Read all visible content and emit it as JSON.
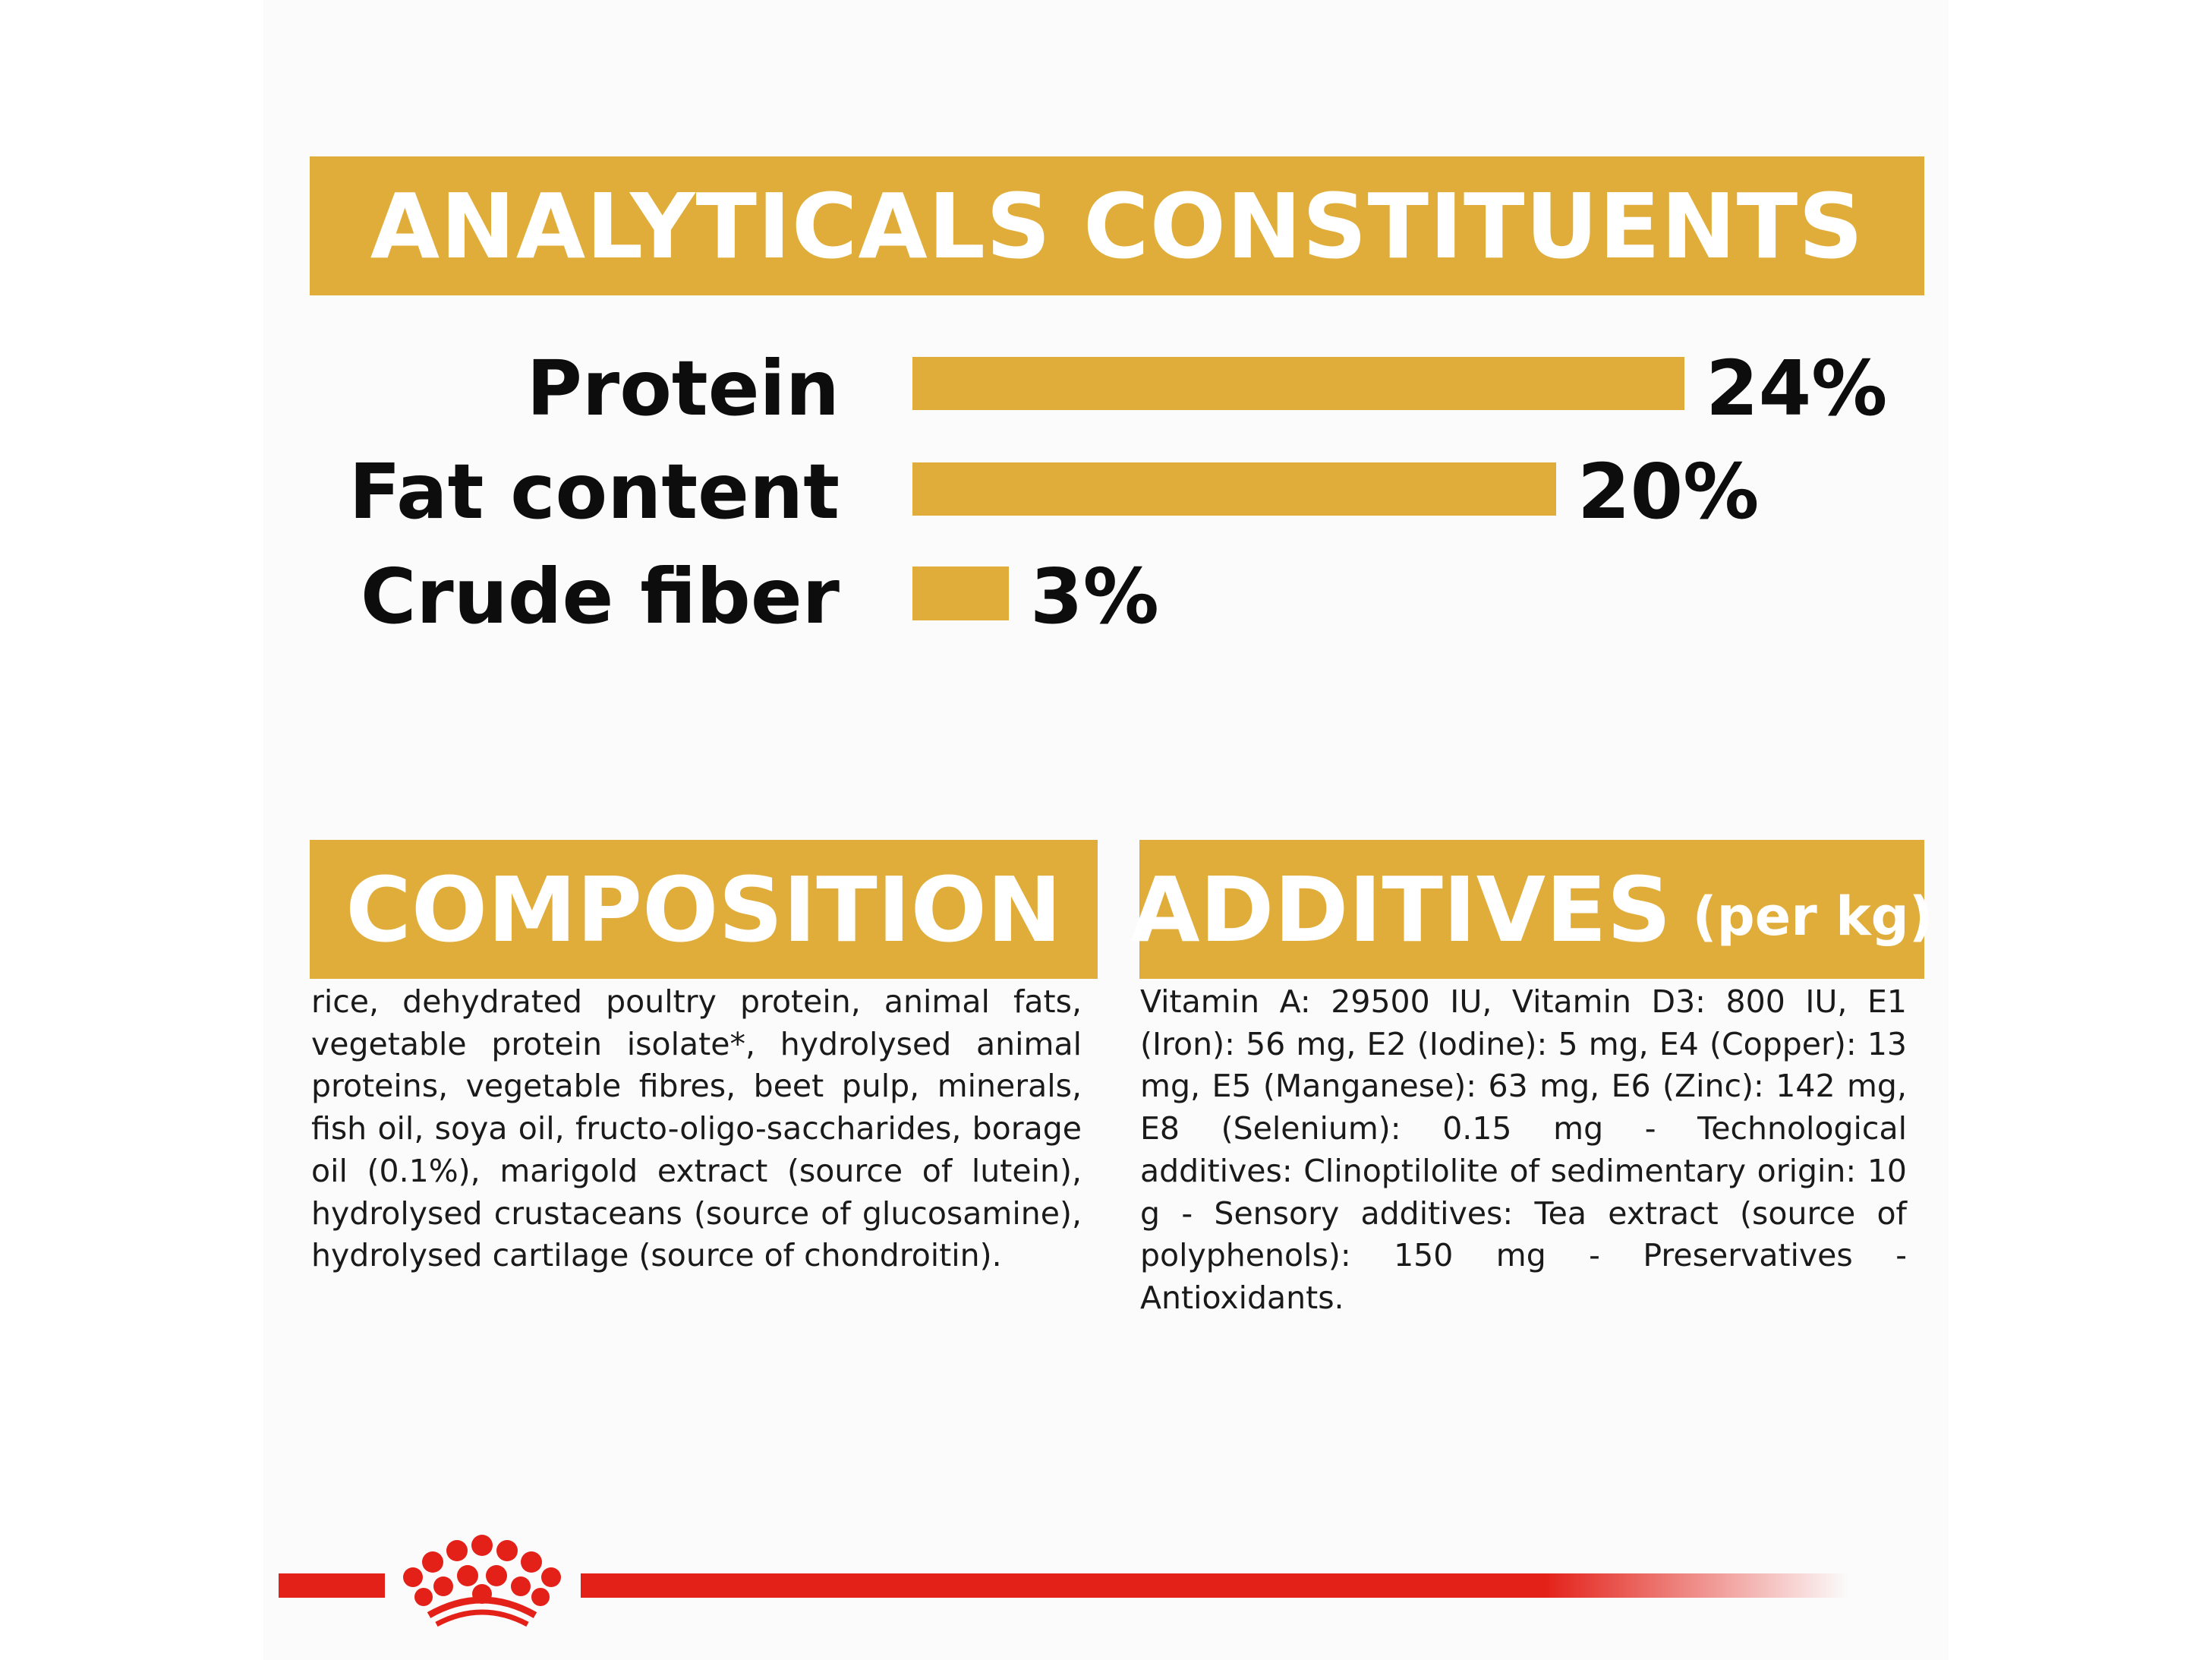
{
  "analytical": {
    "title": "ANALYTICALS CONSTITUENTS",
    "rows": [
      {
        "label": "Protein",
        "value": "24%",
        "percent": 24
      },
      {
        "label": "Fat content",
        "value": "20%",
        "percent": 20
      },
      {
        "label": "Crude fiber",
        "value": "3%",
        "percent": 3
      }
    ]
  },
  "composition": {
    "title": "COMPOSITION",
    "text": "rice, dehydrated poultry protein, animal fats, vegetable protein isolate*, hydrolysed animal proteins, vegetable fibres, beet pulp, minerals, fish oil, soya oil, fructo-oligo-saccharides, borage oil (0.1%), marigold extract (source of lutein), hydrolysed crustaceans (source of glucosamine), hydrolysed cartilage (source of chondroitin)."
  },
  "additives": {
    "title": "ADDITIVES",
    "subtitle": "(per kg)",
    "text": "Vitamin A: 29500 IU, Vitamin D3: 800 IU, E1 (Iron): 56 mg, E2 (Iodine): 5 mg, E4 (Copper): 13 mg, E5 (Manganese): 63 mg, E6 (Zinc): 142 mg, E8 (Selenium): 0.15 mg - Technological additives: Clinoptilolite of sedimentary origin: 10 g - Sensory additives: Tea extract (source of polyphenols): 150 mg - Preservatives - Antioxidants."
  },
  "colors": {
    "accent": "#e0ad3a",
    "brand_red": "#e32119",
    "text": "#0d0d0d",
    "background": "#fbfbfb"
  },
  "icons": {
    "logo": "royal-canin-crown-icon"
  }
}
